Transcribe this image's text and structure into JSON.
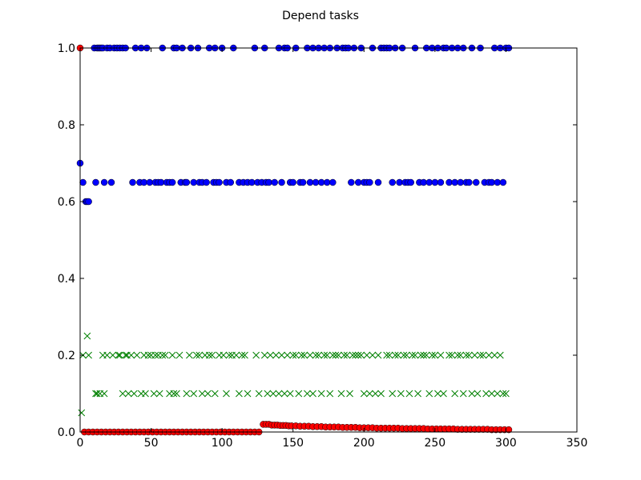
{
  "chart_data": {
    "type": "scatter",
    "title": "Depend tasks",
    "xlabel": "",
    "ylabel": "",
    "xlim": [
      0,
      350
    ],
    "ylim": [
      0,
      1.0
    ],
    "x_ticks": [
      0,
      50,
      100,
      150,
      200,
      250,
      300,
      350
    ],
    "y_ticks": [
      0.0,
      0.2,
      0.4,
      0.6,
      0.8,
      1.0
    ],
    "x_tick_labels": [
      "0",
      "50",
      "100",
      "150",
      "200",
      "250",
      "300",
      "350"
    ],
    "y_tick_labels": [
      "0.0",
      "0.2",
      "0.4",
      "0.6",
      "0.8",
      "1.0"
    ],
    "grid": false,
    "series": [
      {
        "color": "#0000ff",
        "marker": "circle",
        "x": [
          0,
          2,
          4,
          5,
          6,
          10,
          11,
          12,
          13,
          14,
          15,
          16,
          17,
          19,
          21,
          22,
          24,
          26,
          28,
          30,
          32,
          37,
          39,
          42,
          43,
          45,
          47,
          49,
          53,
          55,
          57,
          58,
          61,
          63,
          65,
          66,
          68,
          71,
          72,
          74,
          75,
          78,
          80,
          83,
          84,
          86,
          89,
          91,
          94,
          95,
          96,
          98,
          100,
          103,
          106,
          108,
          112,
          115,
          118,
          121,
          123,
          125,
          128,
          130,
          131,
          133,
          137,
          140,
          142,
          144,
          146,
          148,
          150,
          152,
          155,
          157,
          160,
          162,
          164,
          166,
          168,
          170,
          172,
          174,
          176,
          178,
          181,
          185,
          187,
          189,
          191,
          193,
          196,
          198,
          200,
          202,
          204,
          206,
          210,
          212,
          214,
          216,
          218,
          220,
          222,
          225,
          227,
          229,
          231,
          233,
          236,
          239,
          242,
          244,
          246,
          248,
          250,
          252,
          254,
          256,
          258,
          260,
          262,
          264,
          266,
          268,
          270,
          272,
          274,
          276,
          279,
          282,
          285,
          288,
          290,
          292,
          294,
          296,
          298,
          300,
          302
        ],
        "y": [
          0.7,
          0.65,
          0.6,
          0.6,
          0.6,
          1.0,
          0.65,
          1.0,
          1.0,
          1.0,
          1.0,
          1.0,
          0.65,
          1.0,
          1.0,
          0.65,
          1.0,
          1.0,
          1.0,
          1.0,
          1.0,
          0.65,
          1.0,
          0.65,
          1.0,
          0.65,
          1.0,
          0.65,
          0.65,
          0.65,
          0.65,
          1.0,
          0.65,
          0.65,
          0.65,
          1.0,
          1.0,
          0.65,
          1.0,
          0.65,
          0.65,
          1.0,
          0.65,
          1.0,
          0.65,
          0.65,
          0.65,
          1.0,
          0.65,
          1.0,
          0.65,
          0.65,
          1.0,
          0.65,
          0.65,
          1.0,
          0.65,
          0.65,
          0.65,
          0.65,
          1.0,
          0.65,
          0.65,
          1.0,
          0.65,
          0.65,
          0.65,
          1.0,
          0.65,
          1.0,
          1.0,
          0.65,
          0.65,
          1.0,
          0.65,
          0.65,
          1.0,
          0.65,
          1.0,
          0.65,
          1.0,
          0.65,
          1.0,
          0.65,
          1.0,
          0.65,
          1.0,
          1.0,
          1.0,
          1.0,
          0.65,
          1.0,
          0.65,
          1.0,
          0.65,
          0.65,
          0.65,
          1.0,
          0.65,
          1.0,
          1.0,
          1.0,
          1.0,
          0.65,
          1.0,
          0.65,
          1.0,
          0.65,
          0.65,
          0.65,
          1.0,
          0.65,
          0.65,
          1.0,
          0.65,
          1.0,
          0.65,
          1.0,
          0.65,
          1.0,
          1.0,
          0.65,
          1.0,
          0.65,
          1.0,
          0.65,
          1.0,
          0.65,
          0.65,
          1.0,
          0.65,
          1.0,
          0.65,
          0.65,
          0.65,
          1.0,
          0.65,
          1.0,
          0.65,
          1.0,
          1.0
        ]
      },
      {
        "color": "#008000",
        "marker": "x",
        "x": [
          1,
          2,
          5,
          6,
          11,
          12,
          14,
          16,
          17,
          19,
          23,
          27,
          28,
          30,
          32,
          33,
          34,
          36,
          38,
          40,
          43,
          45,
          46,
          48,
          50,
          52,
          53,
          55,
          56,
          58,
          60,
          63,
          65,
          66,
          68,
          70,
          75,
          77,
          80,
          82,
          84,
          86,
          88,
          90,
          91,
          93,
          95,
          98,
          101,
          103,
          105,
          107,
          110,
          112,
          114,
          116,
          118,
          124,
          126,
          130,
          132,
          134,
          136,
          138,
          140,
          142,
          144,
          146,
          148,
          150,
          152,
          154,
          156,
          158,
          160,
          162,
          164,
          166,
          168,
          170,
          172,
          174,
          176,
          178,
          180,
          182,
          184,
          186,
          188,
          190,
          192,
          194,
          196,
          198,
          200,
          202,
          204,
          206,
          208,
          210,
          212,
          216,
          218,
          220,
          222,
          224,
          226,
          228,
          230,
          232,
          234,
          236,
          238,
          240,
          242,
          244,
          246,
          248,
          250,
          252,
          254,
          256,
          260,
          262,
          264,
          266,
          268,
          270,
          272,
          274,
          276,
          278,
          280,
          282,
          284,
          286,
          288,
          290,
          292,
          294,
          296,
          298,
          300
        ],
        "y": [
          0.05,
          0.2,
          0.25,
          0.2,
          0.1,
          0.1,
          0.1,
          0.2,
          0.1,
          0.2,
          0.2,
          0.2,
          0.2,
          0.1,
          0.2,
          0.2,
          0.1,
          0.2,
          0.1,
          0.2,
          0.1,
          0.2,
          0.1,
          0.2,
          0.2,
          0.1,
          0.2,
          0.2,
          0.1,
          0.2,
          0.2,
          0.1,
          0.2,
          0.1,
          0.1,
          0.2,
          0.1,
          0.2,
          0.1,
          0.2,
          0.2,
          0.1,
          0.2,
          0.1,
          0.2,
          0.2,
          0.1,
          0.2,
          0.2,
          0.1,
          0.2,
          0.2,
          0.2,
          0.1,
          0.2,
          0.2,
          0.1,
          0.2,
          0.1,
          0.2,
          0.1,
          0.2,
          0.1,
          0.2,
          0.1,
          0.2,
          0.1,
          0.2,
          0.1,
          0.2,
          0.2,
          0.1,
          0.2,
          0.2,
          0.1,
          0.2,
          0.1,
          0.2,
          0.2,
          0.1,
          0.2,
          0.2,
          0.1,
          0.2,
          0.2,
          0.2,
          0.1,
          0.2,
          0.2,
          0.1,
          0.2,
          0.2,
          0.2,
          0.2,
          0.1,
          0.2,
          0.1,
          0.2,
          0.1,
          0.2,
          0.1,
          0.2,
          0.2,
          0.1,
          0.2,
          0.2,
          0.1,
          0.2,
          0.2,
          0.1,
          0.2,
          0.2,
          0.1,
          0.2,
          0.2,
          0.2,
          0.1,
          0.2,
          0.2,
          0.1,
          0.2,
          0.1,
          0.2,
          0.2,
          0.1,
          0.2,
          0.2,
          0.1,
          0.2,
          0.2,
          0.1,
          0.2,
          0.1,
          0.2,
          0.2,
          0.1,
          0.2,
          0.1,
          0.2,
          0.1,
          0.2,
          0.1,
          0.1
        ]
      },
      {
        "color": "#ff0000",
        "marker": "circle",
        "x": [
          0,
          3,
          6,
          9,
          12,
          15,
          18,
          21,
          24,
          27,
          30,
          33,
          36,
          39,
          42,
          45,
          48,
          51,
          54,
          57,
          60,
          63,
          66,
          69,
          72,
          75,
          78,
          81,
          84,
          87,
          90,
          93,
          96,
          99,
          102,
          105,
          108,
          111,
          114,
          117,
          120,
          123,
          126,
          129,
          131,
          133,
          135,
          137,
          139,
          141,
          143,
          145,
          147,
          149,
          152,
          155,
          158,
          161,
          164,
          167,
          170,
          173,
          176,
          179,
          182,
          185,
          188,
          191,
          194,
          197,
          200,
          203,
          206,
          209,
          212,
          215,
          218,
          221,
          224,
          227,
          230,
          233,
          236,
          239,
          242,
          245,
          248,
          251,
          254,
          257,
          260,
          263,
          266,
          269,
          272,
          275,
          278,
          281,
          284,
          287,
          290,
          293,
          296,
          299,
          302
        ],
        "y": [
          1.0,
          0.0,
          0.0,
          0.0,
          0.0,
          0.0,
          0.0,
          0.0,
          0.0,
          0.0,
          0.0,
          0.0,
          0.0,
          0.0,
          0.0,
          0.0,
          0.0,
          0.0,
          0.0,
          0.0,
          0.0,
          0.0,
          0.0,
          0.0,
          0.0,
          0.0,
          0.0,
          0.0,
          0.0,
          0.0,
          0.0,
          0.0,
          0.0,
          0.0,
          0.0,
          0.0,
          0.0,
          0.0,
          0.0,
          0.0,
          0.0,
          0.0,
          0.0,
          0.02,
          0.02,
          0.02,
          0.018,
          0.018,
          0.018,
          0.017,
          0.017,
          0.017,
          0.016,
          0.016,
          0.016,
          0.015,
          0.015,
          0.015,
          0.014,
          0.014,
          0.014,
          0.013,
          0.013,
          0.013,
          0.013,
          0.012,
          0.012,
          0.012,
          0.012,
          0.011,
          0.011,
          0.011,
          0.011,
          0.01,
          0.01,
          0.01,
          0.01,
          0.01,
          0.01,
          0.009,
          0.009,
          0.009,
          0.009,
          0.009,
          0.009,
          0.008,
          0.008,
          0.008,
          0.008,
          0.008,
          0.008,
          0.008,
          0.007,
          0.007,
          0.007,
          0.007,
          0.007,
          0.007,
          0.007,
          0.007,
          0.006,
          0.006,
          0.006,
          0.006,
          0.006
        ]
      }
    ]
  }
}
